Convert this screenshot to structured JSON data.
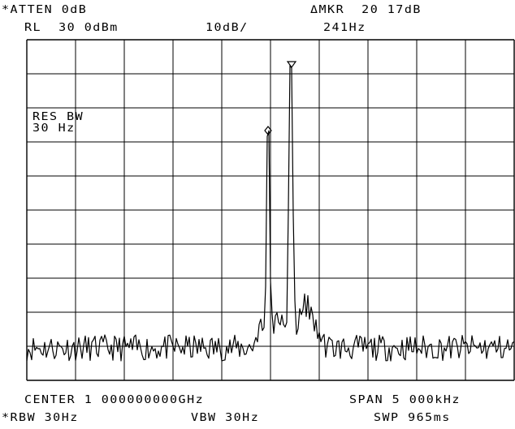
{
  "header": {
    "atten": "*ATTEN 0dB",
    "ref_level": "RL  30 0dBm",
    "scale": "10dB/",
    "delta_marker_label": "ΔMKR  20 17dB",
    "delta_marker_freq": "241Hz"
  },
  "annotation": {
    "res_bw_label": "RES BW",
    "res_bw_value": "30 Hz"
  },
  "footer": {
    "center": "CENTER 1 000000000GHz",
    "span": "SPAN 5 000kHz",
    "rbw": "*RBW 30Hz",
    "vbw": "VBW 30Hz",
    "sweep": "SWP 965ms"
  },
  "colors": {
    "background": "#ffffff",
    "trace": "#000000",
    "graticule": "#000000"
  },
  "graticule": {
    "columns": 10,
    "rows": 10
  },
  "markers": [
    {
      "name": "marker-diamond-icon",
      "shape": "diamond"
    },
    {
      "name": "marker-triangle-icon",
      "shape": "triangle-down"
    }
  ]
}
